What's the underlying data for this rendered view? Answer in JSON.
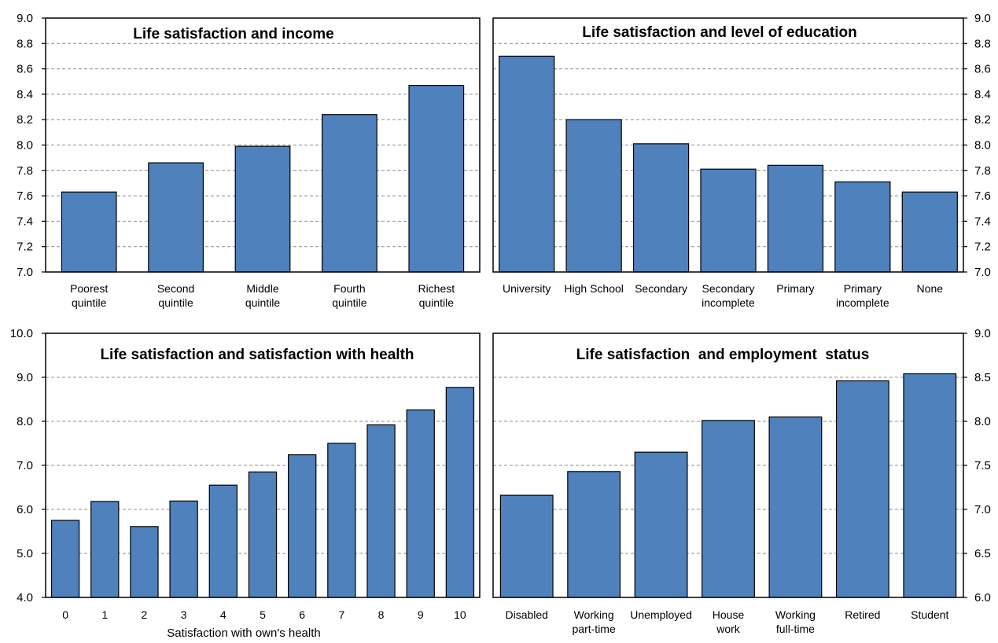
{
  "colors": {
    "bar_fill": "#4f81bd",
    "bar_stroke": "#000000",
    "grid": "#8c8c8c",
    "frame": "#000000"
  },
  "chart_data": [
    {
      "type": "bar",
      "title": "Life satisfaction and income",
      "categories": [
        [
          "Poorest",
          "quintile"
        ],
        [
          "Second",
          "quintile"
        ],
        [
          "Middle",
          "quintile"
        ],
        [
          "Fourth",
          "quintile"
        ],
        [
          "Richest",
          "quintile"
        ]
      ],
      "values": [
        7.63,
        7.86,
        7.99,
        8.24,
        8.47
      ],
      "xlabel": "",
      "ylim": [
        7.0,
        9.0
      ],
      "yticks": [
        "7.0",
        "7.2",
        "7.4",
        "7.6",
        "7.8",
        "8.0",
        "8.2",
        "8.4",
        "8.6",
        "8.8",
        "9.0"
      ],
      "y_axis_side": "left",
      "grid": true
    },
    {
      "type": "bar",
      "title": "Life satisfaction and level of education",
      "categories": [
        [
          "University"
        ],
        [
          "High School"
        ],
        [
          "Secondary"
        ],
        [
          "Secondary",
          "incomplete"
        ],
        [
          "Primary"
        ],
        [
          "Primary",
          "incomplete"
        ],
        [
          "None"
        ]
      ],
      "values": [
        8.7,
        8.2,
        8.01,
        7.81,
        7.84,
        7.71,
        7.63
      ],
      "xlabel": "",
      "ylim": [
        7.0,
        9.0
      ],
      "yticks": [
        "7.0",
        "7.2",
        "7.4",
        "7.6",
        "7.8",
        "8.0",
        "8.2",
        "8.4",
        "8.6",
        "8.8",
        "9.0"
      ],
      "y_axis_side": "right",
      "grid": true
    },
    {
      "type": "bar",
      "title": "Life satisfaction and satisfaction with health",
      "categories": [
        [
          "0"
        ],
        [
          "1"
        ],
        [
          "2"
        ],
        [
          "3"
        ],
        [
          "4"
        ],
        [
          "5"
        ],
        [
          "6"
        ],
        [
          "7"
        ],
        [
          "8"
        ],
        [
          "9"
        ],
        [
          "10"
        ]
      ],
      "values": [
        5.75,
        6.18,
        5.61,
        6.19,
        6.55,
        6.85,
        7.24,
        7.5,
        7.92,
        8.26,
        8.77
      ],
      "xlabel": "Satisfaction with own's health",
      "ylim": [
        4.0,
        10.0
      ],
      "yticks": [
        "4.0",
        "5.0",
        "6.0",
        "7.0",
        "8.0",
        "9.0",
        "10.0"
      ],
      "y_axis_side": "left",
      "grid": true
    },
    {
      "type": "bar",
      "title": "Life satisfaction  and employment  status",
      "categories": [
        [
          "Disabled"
        ],
        [
          "Working",
          "part-time"
        ],
        [
          "Unemployed"
        ],
        [
          "House",
          "work"
        ],
        [
          "Working",
          "full-time"
        ],
        [
          "Retired"
        ],
        [
          "Student"
        ]
      ],
      "values": [
        7.16,
        7.43,
        7.65,
        8.01,
        8.05,
        8.46,
        8.54
      ],
      "xlabel": "",
      "ylim": [
        6.0,
        9.0
      ],
      "yticks": [
        "6.0",
        "6.5",
        "7.0",
        "7.5",
        "8.0",
        "8.5",
        "9.0"
      ],
      "y_axis_side": "right",
      "grid": true
    }
  ]
}
